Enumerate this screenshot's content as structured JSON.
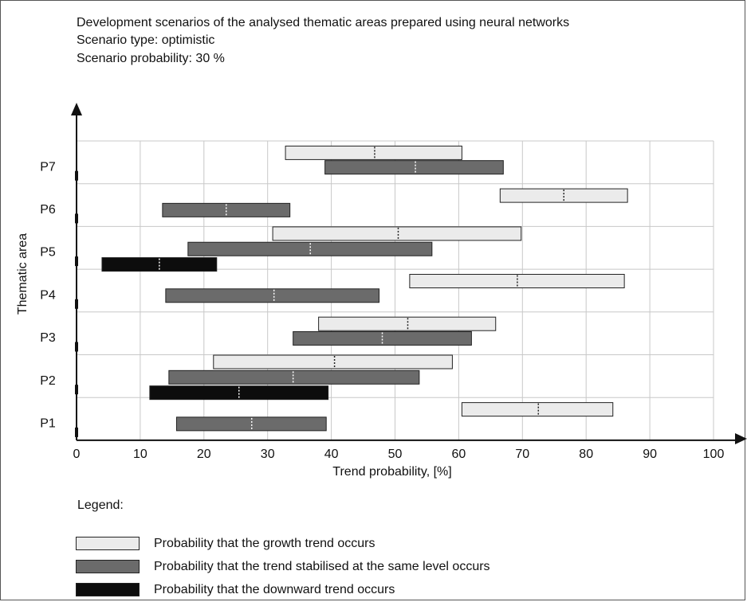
{
  "chart_data": {
    "type": "bar",
    "subtype": "floating-range",
    "title_lines": [
      "Development scenarios of the analysed thematic areas prepared using neural networks",
      "Scenario type: optimistic",
      "Scenario probability: 30 %"
    ],
    "xlabel": "Trend probability, [%]",
    "ylabel": "Thematic area",
    "xlim": [
      0,
      100
    ],
    "x_ticks": [
      0,
      10,
      20,
      30,
      40,
      50,
      60,
      70,
      80,
      90,
      100
    ],
    "categories": [
      "P1",
      "P2",
      "P3",
      "P4",
      "P5",
      "P6",
      "P7"
    ],
    "grid": true,
    "legend_title": "Legend:",
    "series": [
      {
        "name": "Probability that the growth trend occurs",
        "color": "#ebebeb",
        "ranges": {
          "P1": [
            60.5,
            84.2,
            72.5
          ],
          "P2": [
            21.5,
            59,
            40.5
          ],
          "P3": [
            38,
            65.8,
            52
          ],
          "P4": [
            52.3,
            86,
            69.2
          ],
          "P5": [
            30.8,
            69.8,
            50.5
          ],
          "P6": [
            66.5,
            86.5,
            76.5
          ],
          "P7": [
            32.8,
            60.5,
            46.8
          ]
        }
      },
      {
        "name": "Probability that the trend stabilised at the same level occurs",
        "color": "#6b6b6b",
        "ranges": {
          "P1": [
            15.7,
            39.2,
            27.5
          ],
          "P2": [
            14.5,
            53.8,
            34
          ],
          "P3": [
            34,
            62,
            48
          ],
          "P4": [
            14,
            47.5,
            31
          ],
          "P5": [
            17.5,
            55.8,
            36.7
          ],
          "P6": [
            13.5,
            33.5,
            23.5
          ],
          "P7": [
            39,
            67,
            53.2
          ]
        }
      },
      {
        "name": "Probability that the downward trend occurs",
        "color": "#0d0d0d",
        "ranges": {
          "P2": [
            11.5,
            39.5,
            25.5
          ],
          "P5": [
            4,
            22,
            13
          ]
        }
      }
    ]
  }
}
